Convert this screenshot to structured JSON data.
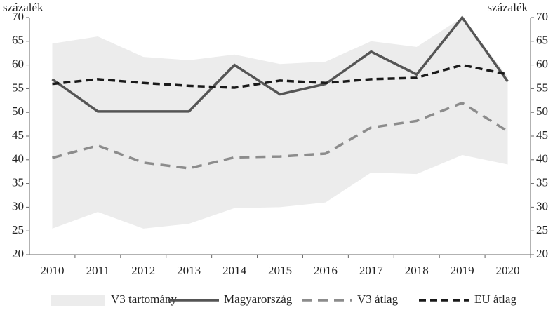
{
  "chart_data": {
    "type": "line",
    "y_label": "százalék",
    "y2_label": "százalék",
    "categories": [
      "2010",
      "2011",
      "2012",
      "2013",
      "2014",
      "2015",
      "2016",
      "2017",
      "2018",
      "2019",
      "2020"
    ],
    "band": {
      "name": "V3 tartomány",
      "color": "#ececec",
      "upper": [
        64.5,
        66,
        61.7,
        61,
        62.2,
        60.2,
        60.7,
        65,
        63.8,
        70,
        57.5
      ],
      "lower": [
        25.5,
        29,
        25.5,
        26.5,
        29.8,
        30,
        31,
        37.3,
        37,
        41,
        39
      ]
    },
    "series": [
      {
        "name": "Magyarország",
        "color": "#555555",
        "dash": "none",
        "values": [
          57,
          50.2,
          50.2,
          50.2,
          60,
          53.8,
          56,
          62.8,
          58,
          70,
          56.5
        ]
      },
      {
        "name": "V3 átlag",
        "color": "#8c8c8c",
        "dash": "14 9",
        "values": [
          40.4,
          43,
          39.4,
          38.2,
          40.5,
          40.7,
          41.3,
          46.8,
          48.2,
          52,
          46
        ]
      },
      {
        "name": "EU átlag",
        "color": "#1a1a1a",
        "dash": "10 6",
        "values": [
          56,
          57,
          56.2,
          55.6,
          55.2,
          56.7,
          56.2,
          57,
          57.3,
          60,
          58
        ]
      }
    ],
    "ylim": [
      20,
      70
    ],
    "yticks": [
      20,
      25,
      30,
      35,
      40,
      45,
      50,
      55,
      60,
      65,
      70
    ],
    "y2lim": [
      20,
      70
    ],
    "y2ticks": [
      20,
      25,
      30,
      35,
      40,
      45,
      50,
      55,
      60,
      65,
      70
    ],
    "grid": false
  }
}
